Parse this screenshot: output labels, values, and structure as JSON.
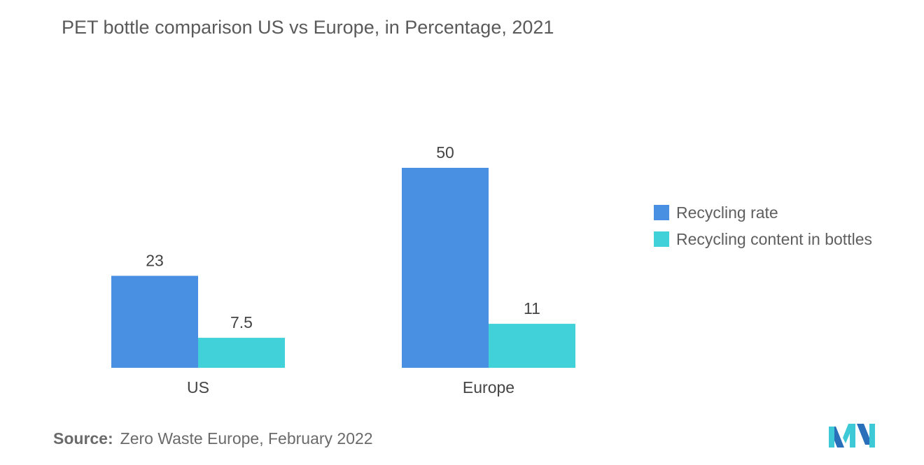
{
  "title": "PET bottle comparison US vs Europe, in Percentage, 2021",
  "source": {
    "label": "Source:",
    "text": "Zero Waste Europe, February 2022"
  },
  "logo": {
    "icon": "mordor-intelligence-logo",
    "colors": [
      "#2a6fba",
      "#3ec9d6"
    ]
  },
  "chart_data": {
    "type": "bar",
    "title": "PET bottle comparison US vs Europe, in Percentage, 2021",
    "categories": [
      "US",
      "Europe"
    ],
    "series": [
      {
        "name": "Recycling rate",
        "values": [
          23,
          50
        ],
        "labels": [
          "23",
          "50"
        ],
        "color": "#4a90e2"
      },
      {
        "name": "Recycling content in bottles",
        "values": [
          7.5,
          11
        ],
        "labels": [
          "7.5",
          "11"
        ],
        "color": "#40d2d8"
      }
    ],
    "ylim": [
      0,
      50
    ],
    "grid": false,
    "legend_position": "right",
    "xlabel": "",
    "ylabel": ""
  }
}
